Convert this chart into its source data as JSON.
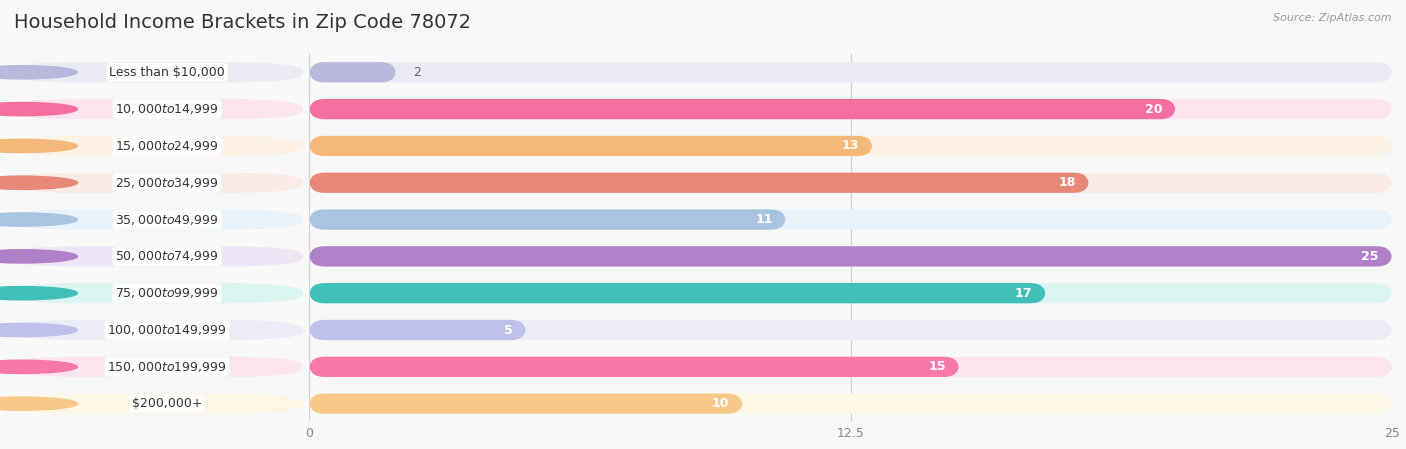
{
  "title": "Household Income Brackets in Zip Code 78072",
  "source": "Source: ZipAtlas.com",
  "categories": [
    "Less than $10,000",
    "$10,000 to $14,999",
    "$15,000 to $24,999",
    "$25,000 to $34,999",
    "$35,000 to $49,999",
    "$50,000 to $74,999",
    "$75,000 to $99,999",
    "$100,000 to $149,999",
    "$150,000 to $199,999",
    "$200,000+"
  ],
  "values": [
    2,
    20,
    13,
    18,
    11,
    25,
    17,
    5,
    15,
    10
  ],
  "bar_colors": [
    "#b8b8dc",
    "#f46fa0",
    "#f4b87a",
    "#e88878",
    "#a8c4e0",
    "#b080c8",
    "#40c0b8",
    "#c0c0ec",
    "#f878a8",
    "#f8c888"
  ],
  "bg_colors": [
    "#eaeaf4",
    "#fce4ee",
    "#fdf2e4",
    "#faeae6",
    "#e8f2fa",
    "#ede4f6",
    "#dcf4f0",
    "#ececf8",
    "#fce4ee",
    "#fef6e4"
  ],
  "xlim": [
    0,
    25
  ],
  "xticks": [
    0,
    12.5,
    25
  ],
  "background_color": "#f8f8f8",
  "title_fontsize": 14,
  "label_fontsize": 9,
  "value_fontsize": 9
}
